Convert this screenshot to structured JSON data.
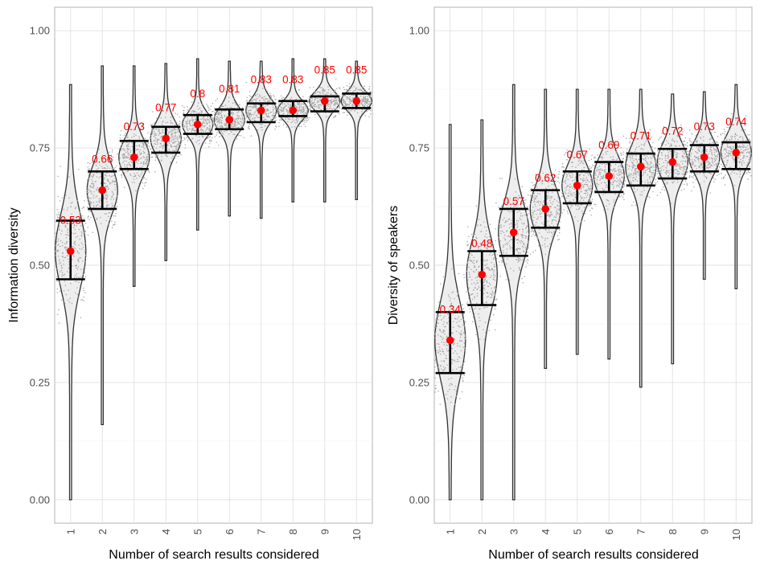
{
  "colors": {
    "mean": "#ff0000",
    "violin_fill": "#ebebeb",
    "jitter": "#a6a6a6",
    "errorbar": "#000000"
  },
  "chart_data": [
    {
      "type": "violin",
      "xlabel": "Number of search results considered",
      "ylabel": "Information diversity",
      "categories": [
        "1",
        "2",
        "3",
        "4",
        "5",
        "6",
        "7",
        "8",
        "9",
        "10"
      ],
      "ylim": [
        -0.05,
        1.05
      ],
      "yticks": [
        0.0,
        0.25,
        0.5,
        0.75,
        1.0
      ],
      "ytick_labels": [
        "0.00",
        "0.25",
        "0.50",
        "0.75",
        "1.00"
      ],
      "grid": true,
      "means": [
        0.53,
        0.66,
        0.73,
        0.77,
        0.8,
        0.81,
        0.83,
        0.83,
        0.85,
        0.85
      ],
      "mean_labels": [
        "0.53",
        "0.66",
        "0.73",
        "0.77",
        "0.8",
        "0.81",
        "0.83",
        "0.83",
        "0.85",
        "0.85"
      ],
      "error_lower": [
        0.47,
        0.62,
        0.705,
        0.74,
        0.78,
        0.79,
        0.805,
        0.818,
        0.828,
        0.835
      ],
      "error_upper": [
        0.595,
        0.7,
        0.765,
        0.795,
        0.82,
        0.832,
        0.845,
        0.85,
        0.86,
        0.866
      ],
      "violin_min": [
        0.0,
        0.16,
        0.455,
        0.51,
        0.575,
        0.605,
        0.6,
        0.635,
        0.635,
        0.64
      ],
      "violin_max": [
        0.885,
        0.925,
        0.925,
        0.93,
        0.94,
        0.935,
        0.935,
        0.94,
        0.94,
        0.935
      ]
    },
    {
      "type": "violin",
      "xlabel": "Number of search results considered",
      "ylabel": "Diversity of speakers",
      "categories": [
        "1",
        "2",
        "3",
        "4",
        "5",
        "6",
        "7",
        "8",
        "9",
        "10"
      ],
      "ylim": [
        -0.05,
        1.05
      ],
      "yticks": [
        0.0,
        0.25,
        0.5,
        0.75,
        1.0
      ],
      "ytick_labels": [
        "0.00",
        "0.25",
        "0.50",
        "0.75",
        "1.00"
      ],
      "grid": true,
      "means": [
        0.34,
        0.48,
        0.57,
        0.62,
        0.67,
        0.69,
        0.71,
        0.72,
        0.73,
        0.74
      ],
      "mean_labels": [
        "0.34",
        "0.48",
        "0.57",
        "0.62",
        "0.67",
        "0.69",
        "0.71",
        "0.72",
        "0.73",
        "0.74"
      ],
      "error_lower": [
        0.27,
        0.415,
        0.52,
        0.58,
        0.632,
        0.656,
        0.67,
        0.685,
        0.7,
        0.705
      ],
      "error_upper": [
        0.4,
        0.53,
        0.62,
        0.66,
        0.7,
        0.72,
        0.738,
        0.748,
        0.756,
        0.762
      ],
      "violin_min": [
        0.0,
        0.0,
        0.0,
        0.28,
        0.31,
        0.3,
        0.24,
        0.29,
        0.47,
        0.45
      ],
      "violin_max": [
        0.8,
        0.81,
        0.885,
        0.875,
        0.875,
        0.875,
        0.875,
        0.865,
        0.87,
        0.885
      ]
    }
  ]
}
